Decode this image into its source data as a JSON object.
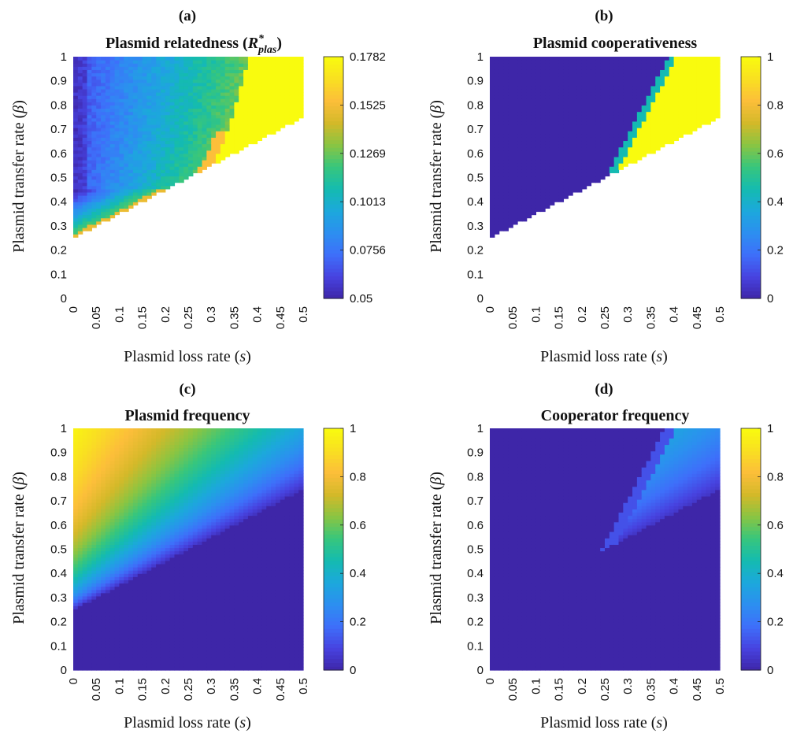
{
  "colormap": [
    "#3e26a8",
    "#4743e0",
    "#3e6ffa",
    "#2c8ff0",
    "#1ca8dc",
    "#14bbb0",
    "#38c67c",
    "#8ac542",
    "#d4b929",
    "#fcbe3a",
    "#f9e021",
    "#f9fb0e"
  ],
  "chart_data": [
    {
      "type": "heatmap",
      "id": "a",
      "panel_label": "(a)",
      "title": "Plasmid relatedness (",
      "title_math": "R",
      "title_sup": "*",
      "title_sub": "plas",
      "title_close": ")",
      "xlabel": "Plasmid loss rate (",
      "xlabel_sym": "s",
      "ylabel": "Plasmid transfer rate (",
      "ylabel_sym": "β",
      "xlim": [
        0,
        0.5
      ],
      "ylim": [
        0,
        1
      ],
      "xticks": [
        "0",
        "0.05",
        "0.1",
        "0.15",
        "0.2",
        "0.25",
        "0.3",
        "0.35",
        "0.4",
        "0.45",
        "0.5"
      ],
      "yticks": [
        "0",
        "0.1",
        "0.2",
        "0.3",
        "0.4",
        "0.5",
        "0.6",
        "0.7",
        "0.8",
        "0.9",
        "1"
      ],
      "colorbar_range": [
        0.05,
        0.1782
      ],
      "colorbar_ticks": [
        "0.05",
        "0.0756",
        "0.1013",
        "0.1269",
        "0.1525",
        "0.1782"
      ],
      "model": "relatedness"
    },
    {
      "type": "heatmap",
      "id": "b",
      "panel_label": "(b)",
      "title": "Plasmid cooperativeness",
      "xlabel": "Plasmid loss rate (",
      "xlabel_sym": "s",
      "ylabel": "Plasmid transfer rate (",
      "ylabel_sym": "β",
      "xlim": [
        0,
        0.5
      ],
      "ylim": [
        0,
        1
      ],
      "xticks": [
        "0",
        "0.05",
        "0.1",
        "0.15",
        "0.2",
        "0.25",
        "0.3",
        "0.35",
        "0.4",
        "0.45",
        "0.5"
      ],
      "yticks": [
        "0",
        "0.1",
        "0.2",
        "0.3",
        "0.4",
        "0.5",
        "0.6",
        "0.7",
        "0.8",
        "0.9",
        "1"
      ],
      "colorbar_range": [
        0,
        1
      ],
      "colorbar_ticks": [
        "0",
        "0.2",
        "0.4",
        "0.6",
        "0.8",
        "1"
      ],
      "model": "cooperativeness"
    },
    {
      "type": "heatmap",
      "id": "c",
      "panel_label": "(c)",
      "title": "Plasmid frequency",
      "xlabel": "Plasmid loss rate (",
      "xlabel_sym": "s",
      "ylabel": "Plasmid transfer rate (",
      "ylabel_sym": "β",
      "xlim": [
        0,
        0.5
      ],
      "ylim": [
        0,
        1
      ],
      "xticks": [
        "0",
        "0.05",
        "0.1",
        "0.15",
        "0.2",
        "0.25",
        "0.3",
        "0.35",
        "0.4",
        "0.45",
        "0.5"
      ],
      "yticks": [
        "0",
        "0.1",
        "0.2",
        "0.3",
        "0.4",
        "0.5",
        "0.6",
        "0.7",
        "0.8",
        "0.9",
        "1"
      ],
      "colorbar_range": [
        0,
        1
      ],
      "colorbar_ticks": [
        "0",
        "0.2",
        "0.4",
        "0.6",
        "0.8",
        "1"
      ],
      "model": "plasmid_frequency"
    },
    {
      "type": "heatmap",
      "id": "d",
      "panel_label": "(d)",
      "title": "Cooperator frequency",
      "xlabel": "Plasmid loss rate (",
      "xlabel_sym": "s",
      "ylabel": "Plasmid transfer rate (",
      "ylabel_sym": "β",
      "xlim": [
        0,
        0.5
      ],
      "ylim": [
        0,
        1
      ],
      "xticks": [
        "0",
        "0.05",
        "0.1",
        "0.15",
        "0.2",
        "0.25",
        "0.3",
        "0.35",
        "0.4",
        "0.45",
        "0.5"
      ],
      "yticks": [
        "0",
        "0.1",
        "0.2",
        "0.3",
        "0.4",
        "0.5",
        "0.6",
        "0.7",
        "0.8",
        "0.9",
        "1"
      ],
      "colorbar_range": [
        0,
        1
      ],
      "colorbar_ticks": [
        "0",
        "0.2",
        "0.4",
        "0.6",
        "0.8",
        "1"
      ],
      "model": "cooperator_frequency"
    }
  ]
}
